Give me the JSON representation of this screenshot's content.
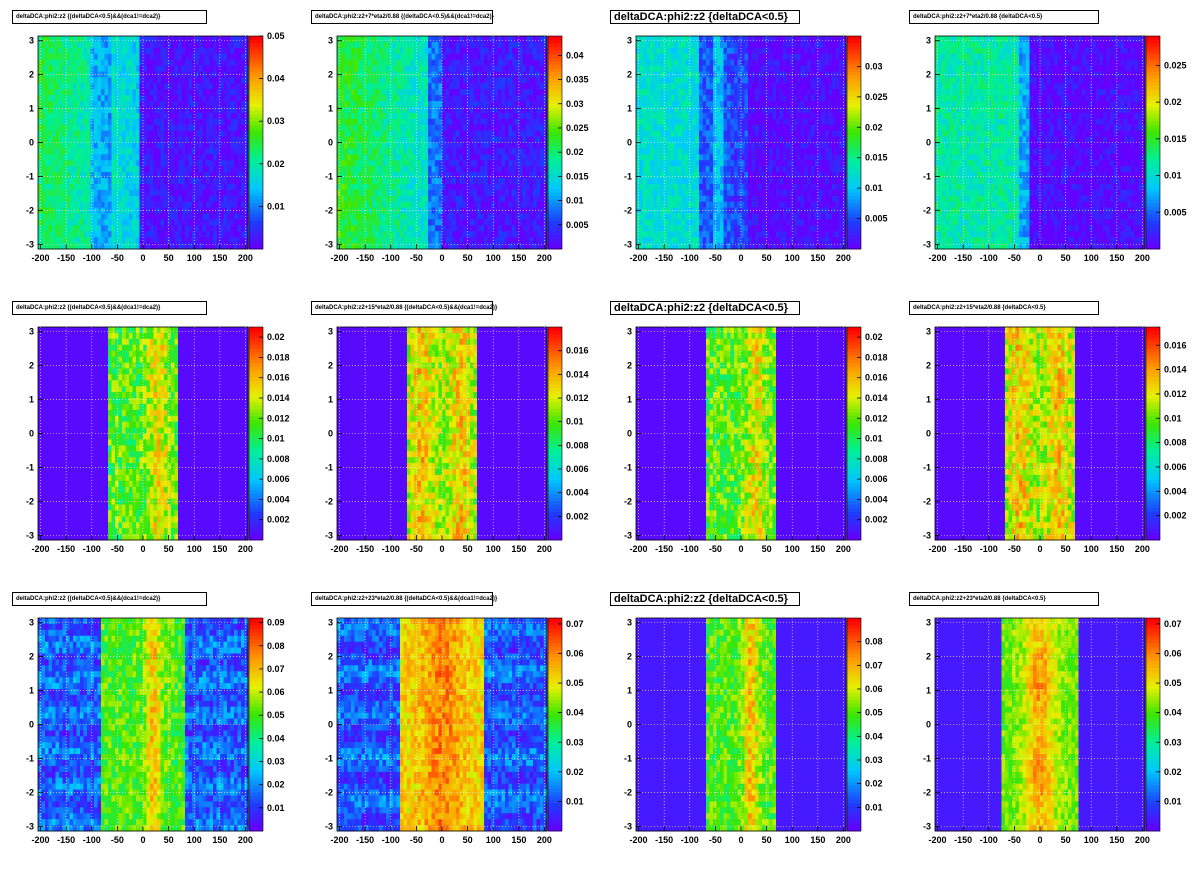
{
  "x_ticks": [
    "-200",
    "-150",
    "-100",
    "-50",
    "0",
    "50",
    "100",
    "150",
    "200"
  ],
  "y_ticks": [
    "-3",
    "-2",
    "-1",
    "0",
    "1",
    "2",
    "3"
  ],
  "chart_data": [
    {
      "type": "heatmap",
      "title": "deltaDCA:phi2:z2 {(deltaDCA<0.5)&&(dca1!=dca2)}",
      "title_size": "small",
      "x": [
        -205,
        205
      ],
      "ylim": [
        -3.14,
        3.14
      ],
      "zmax": 0.05,
      "z_ticks": [
        "0.01",
        "0.02",
        "0.03",
        "0.04",
        "0.05"
      ],
      "z_vals": [
        0.01,
        0.02,
        0.03,
        0.04,
        0.05
      ],
      "profile": "wide"
    },
    {
      "type": "heatmap",
      "title": "deltaDCA:phi2:z2+7*eta2/0.88 {(deltaDCA<0.5)&&(dca1!=dca2)}",
      "title_size": "small",
      "x": [
        -205,
        205
      ],
      "ylim": [
        -3.14,
        3.14
      ],
      "zmax": 0.044,
      "z_ticks": [
        "0.005",
        "0.01",
        "0.015",
        "0.02",
        "0.025",
        "0.03",
        "0.035",
        "0.04"
      ],
      "z_vals": [
        0.005,
        0.01,
        0.015,
        0.02,
        0.025,
        0.03,
        0.035,
        0.04
      ],
      "profile": "wide2"
    },
    {
      "type": "heatmap",
      "title": "deltaDCA:phi2:z2 {deltaDCA<0.5}",
      "title_size": "big",
      "x": [
        -205,
        205
      ],
      "ylim": [
        -3.14,
        3.14
      ],
      "zmax": 0.035,
      "z_ticks": [
        "0.005",
        "0.01",
        "0.015",
        "0.02",
        "0.025",
        "0.03"
      ],
      "z_vals": [
        0.005,
        0.01,
        0.015,
        0.02,
        0.025,
        0.03
      ],
      "profile": "wide3"
    },
    {
      "type": "heatmap",
      "title": "deltaDCA:phi2:z2+7*eta2/0.88 {deltaDCA<0.5}",
      "title_size": "small",
      "x": [
        -205,
        205
      ],
      "ylim": [
        -3.14,
        3.14
      ],
      "zmax": 0.029,
      "z_ticks": [
        "0.005",
        "0.01",
        "0.015",
        "0.02",
        "0.025"
      ],
      "z_vals": [
        0.005,
        0.01,
        0.015,
        0.02,
        0.025
      ],
      "profile": "wide4"
    },
    {
      "type": "heatmap",
      "title": "deltaDCA:phi2:z2 {(deltaDCA<0.5)&&(dca1!=dca2)}",
      "title_size": "small",
      "x": [
        -205,
        205
      ],
      "ylim": [
        -3.14,
        3.14
      ],
      "zmax": 0.021,
      "z_ticks": [
        "0.002",
        "0.004",
        "0.006",
        "0.008",
        "0.01",
        "0.012",
        "0.014",
        "0.016",
        "0.018",
        "0.02"
      ],
      "z_vals": [
        0.002,
        0.004,
        0.006,
        0.008,
        0.01,
        0.012,
        0.014,
        0.016,
        0.018,
        0.02
      ],
      "profile": "band_yellow"
    },
    {
      "type": "heatmap",
      "title": "deltaDCA:phi2:z2+15*eta2/0.88 {(deltaDCA<0.5)&&(dca1!=dca2)}",
      "title_size": "small",
      "x": [
        -205,
        205
      ],
      "ylim": [
        -3.14,
        3.14
      ],
      "zmax": 0.018,
      "z_ticks": [
        "0.002",
        "0.004",
        "0.006",
        "0.008",
        "0.01",
        "0.012",
        "0.014",
        "0.016"
      ],
      "z_vals": [
        0.002,
        0.004,
        0.006,
        0.008,
        0.01,
        0.012,
        0.014,
        0.016
      ],
      "profile": "band_orange"
    },
    {
      "type": "heatmap",
      "title": "deltaDCA:phi2:z2 {deltaDCA<0.5}",
      "title_size": "big",
      "x": [
        -205,
        205
      ],
      "ylim": [
        -3.14,
        3.14
      ],
      "zmax": 0.021,
      "z_ticks": [
        "0.002",
        "0.004",
        "0.006",
        "0.008",
        "0.01",
        "0.012",
        "0.014",
        "0.016",
        "0.018",
        "0.02"
      ],
      "z_vals": [
        0.002,
        0.004,
        0.006,
        0.008,
        0.01,
        0.012,
        0.014,
        0.016,
        0.018,
        0.02
      ],
      "profile": "band_yellow"
    },
    {
      "type": "heatmap",
      "title": "deltaDCA:phi2:z2+15*eta2/0.88 {deltaDCA<0.5}",
      "title_size": "small",
      "x": [
        -205,
        205
      ],
      "ylim": [
        -3.14,
        3.14
      ],
      "zmax": 0.0175,
      "z_ticks": [
        "0.002",
        "0.004",
        "0.006",
        "0.008",
        "0.01",
        "0.012",
        "0.014",
        "0.016"
      ],
      "z_vals": [
        0.002,
        0.004,
        0.006,
        0.008,
        0.01,
        0.012,
        0.014,
        0.016
      ],
      "profile": "band_orange"
    },
    {
      "type": "heatmap",
      "title": "deltaDCA:phi2:z2 {(deltaDCA<0.5)&&(dca1!=dca2)}",
      "title_size": "small",
      "x": [
        -205,
        205
      ],
      "ylim": [
        -3.14,
        3.14
      ],
      "zmax": 0.092,
      "z_ticks": [
        "0.01",
        "0.02",
        "0.03",
        "0.04",
        "0.05",
        "0.06",
        "0.07",
        "0.08",
        "0.09"
      ],
      "z_vals": [
        0.01,
        0.02,
        0.03,
        0.04,
        0.05,
        0.06,
        0.07,
        0.08,
        0.09
      ],
      "profile": "band3_bluebg"
    },
    {
      "type": "heatmap",
      "title": "deltaDCA:phi2:z2+23*eta2/0.88 {(deltaDCA<0.5)&&(dca1!=dca2)}",
      "title_size": "small",
      "x": [
        -205,
        205
      ],
      "ylim": [
        -3.14,
        3.14
      ],
      "zmax": 0.072,
      "z_ticks": [
        "0.01",
        "0.02",
        "0.03",
        "0.04",
        "0.05",
        "0.06",
        "0.07"
      ],
      "z_vals": [
        0.01,
        0.02,
        0.03,
        0.04,
        0.05,
        0.06,
        0.07
      ],
      "profile": "band3_red_bluebg"
    },
    {
      "type": "heatmap",
      "title": "deltaDCA:phi2:z2 {deltaDCA<0.5}",
      "title_size": "big",
      "x": [
        -205,
        205
      ],
      "ylim": [
        -3.14,
        3.14
      ],
      "zmax": 0.09,
      "z_ticks": [
        "0.01",
        "0.02",
        "0.03",
        "0.04",
        "0.05",
        "0.06",
        "0.07",
        "0.08"
      ],
      "z_vals": [
        0.01,
        0.02,
        0.03,
        0.04,
        0.05,
        0.06,
        0.07,
        0.08
      ],
      "profile": "band3"
    },
    {
      "type": "heatmap",
      "title": "deltaDCA:phi2:z2+23*eta2/0.88 {deltaDCA<0.5}",
      "title_size": "small",
      "x": [
        -205,
        205
      ],
      "ylim": [
        -3.14,
        3.14
      ],
      "zmax": 0.072,
      "z_ticks": [
        "0.01",
        "0.02",
        "0.03",
        "0.04",
        "0.05",
        "0.06",
        "0.07"
      ],
      "z_vals": [
        0.01,
        0.02,
        0.03,
        0.04,
        0.05,
        0.06,
        0.07
      ],
      "profile": "band3_red"
    }
  ]
}
